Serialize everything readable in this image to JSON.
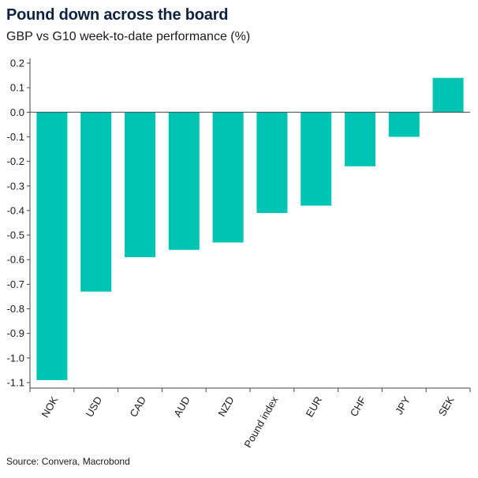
{
  "title": "Pound down across the board",
  "subtitle": "GBP vs G10 week-to-date performance (%)",
  "source": "Source: Convera, Macrobond",
  "colors": {
    "bar": "#00c4b3",
    "axis": "#444444",
    "text": "#1a1a1a",
    "title": "#0c2340"
  },
  "chart_data": {
    "type": "bar",
    "categories": [
      "NOK",
      "USD",
      "CAD",
      "AUD",
      "NZD",
      "Pound index",
      "EUR",
      "CHF",
      "JPY",
      "SEK"
    ],
    "values": [
      -1.09,
      -0.73,
      -0.59,
      -0.56,
      -0.53,
      -0.41,
      -0.38,
      -0.22,
      -0.1,
      0.14
    ],
    "ylim": [
      -1.1,
      0.2
    ],
    "yticks": [
      "0.2",
      "0.1",
      "0.0",
      "-0.1",
      "-0.2",
      "-0.3",
      "-0.4",
      "-0.5",
      "-0.6",
      "-0.7",
      "-0.8",
      "-0.9",
      "-1.0",
      "-1.1"
    ],
    "grid": false,
    "legend": "none"
  }
}
